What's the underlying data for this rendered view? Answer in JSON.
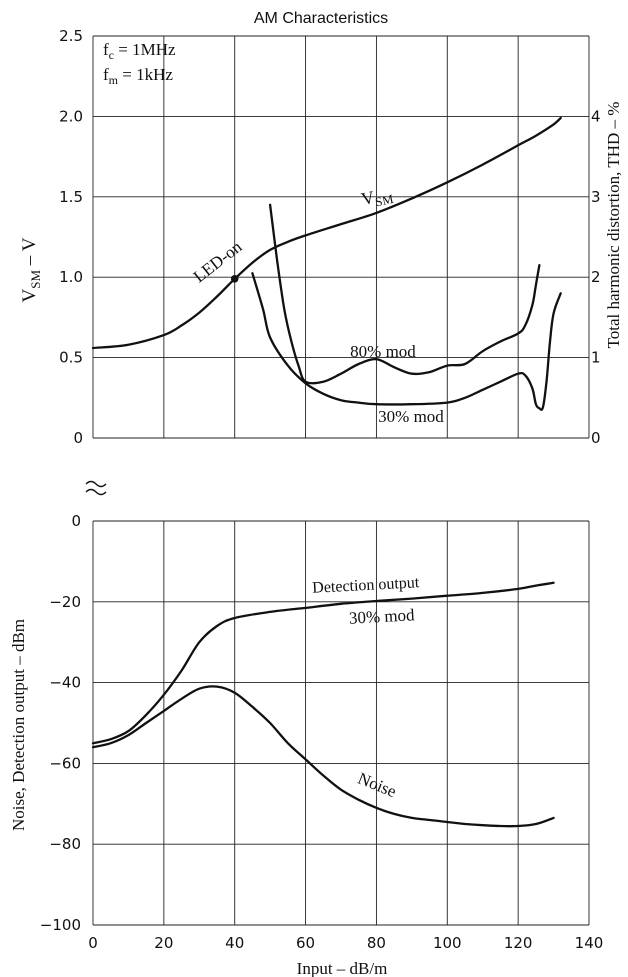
{
  "chart_data": [
    {
      "type": "line",
      "title": "AM Characteristics",
      "annotation": {
        "fc": "f",
        "fc_sub": "c",
        "fc_val": " = 1MHz",
        "fm": "f",
        "fm_sub": "m",
        "fm_val": " = 1kHz"
      },
      "xlabel": "Input  –  dB/m",
      "ylabel_left": {
        "main": "V",
        "sub": "SM",
        "rest": "  –  V"
      },
      "ylabel_right": "Total harmonic distortion, THD  –  %",
      "xlim": [
        0,
        140
      ],
      "ylim_left": [
        0,
        2.5
      ],
      "ylim_right": [
        0,
        5
      ],
      "x_ticks": [
        "0",
        "20",
        "40",
        "60",
        "80",
        "100",
        "120",
        "140"
      ],
      "y_ticks_left": [
        "2.5",
        "2.0",
        "1.5",
        "1.0",
        "0.5",
        "0"
      ],
      "y_ticks_right": [
        "4",
        "3",
        "2",
        "1",
        "0"
      ],
      "grid": true,
      "series": [
        {
          "name": "V",
          "name_sub": "SM",
          "axis": "left",
          "x": [
            0,
            10,
            20,
            25,
            30,
            35,
            40,
            45,
            50,
            55,
            60,
            70,
            80,
            90,
            100,
            110,
            120,
            125,
            130,
            132
          ],
          "y": [
            0.56,
            0.58,
            0.64,
            0.7,
            0.78,
            0.88,
            0.99,
            1.09,
            1.17,
            1.22,
            1.26,
            1.33,
            1.4,
            1.49,
            1.59,
            1.7,
            1.82,
            1.88,
            1.95,
            1.99
          ]
        },
        {
          "name": "80% mod",
          "axis": "right",
          "x": [
            50,
            52,
            54,
            56,
            58,
            60,
            65,
            70,
            75,
            80,
            85,
            90,
            95,
            100,
            105,
            110,
            115,
            120,
            122,
            124,
            125,
            126
          ],
          "y": [
            2.9,
            2.2,
            1.6,
            1.2,
            0.9,
            0.7,
            0.7,
            0.8,
            0.92,
            0.98,
            0.88,
            0.8,
            0.82,
            0.9,
            0.92,
            1.08,
            1.2,
            1.3,
            1.4,
            1.65,
            1.9,
            2.15
          ]
        },
        {
          "name": "30% mod",
          "axis": "right",
          "x": [
            45,
            48,
            50,
            55,
            60,
            65,
            70,
            75,
            80,
            90,
            100,
            105,
            110,
            115,
            120,
            122,
            124,
            125,
            126,
            127,
            128,
            129,
            130,
            132
          ],
          "y": [
            2.05,
            1.6,
            1.25,
            0.9,
            0.68,
            0.55,
            0.47,
            0.44,
            0.42,
            0.42,
            0.44,
            0.5,
            0.6,
            0.7,
            0.8,
            0.78,
            0.62,
            0.42,
            0.37,
            0.38,
            0.7,
            1.2,
            1.55,
            1.8
          ]
        }
      ],
      "marker": {
        "label": "LED-on",
        "x": 40,
        "y": 0.99
      }
    },
    {
      "type": "line",
      "xlabel": "Input  –  dB/m",
      "ylabel": "Noise, Detection output  –  dBm",
      "xlim": [
        0,
        140
      ],
      "ylim": [
        -100,
        0
      ],
      "x_ticks": [
        "0",
        "20",
        "40",
        "60",
        "80",
        "100",
        "120",
        "140"
      ],
      "y_ticks": [
        "0",
        "−20",
        "−40",
        "−60",
        "−80",
        "−100"
      ],
      "grid": true,
      "series": [
        {
          "name": "Detection output",
          "sublabel": "30% mod",
          "x": [
            0,
            5,
            10,
            15,
            20,
            25,
            30,
            35,
            40,
            50,
            60,
            70,
            80,
            90,
            100,
            110,
            120,
            125,
            130
          ],
          "y": [
            -55,
            -54,
            -52,
            -48,
            -43,
            -37,
            -30,
            -26,
            -24,
            -22.5,
            -21.5,
            -20.5,
            -19.8,
            -19.2,
            -18.5,
            -17.8,
            -16.8,
            -16,
            -15.3
          ]
        },
        {
          "name": "Noise",
          "x": [
            0,
            5,
            10,
            15,
            20,
            25,
            30,
            35,
            40,
            45,
            50,
            55,
            60,
            65,
            70,
            75,
            80,
            85,
            90,
            95,
            100,
            105,
            110,
            115,
            120,
            125,
            130
          ],
          "y": [
            -56,
            -55,
            -53,
            -50,
            -47,
            -44,
            -41.5,
            -41,
            -42.5,
            -46,
            -50,
            -55,
            -59,
            -63,
            -66.5,
            -69,
            -71,
            -72.5,
            -73.5,
            -74,
            -74.5,
            -75,
            -75.3,
            -75.5,
            -75.5,
            -75,
            -73.5
          ]
        }
      ]
    }
  ]
}
